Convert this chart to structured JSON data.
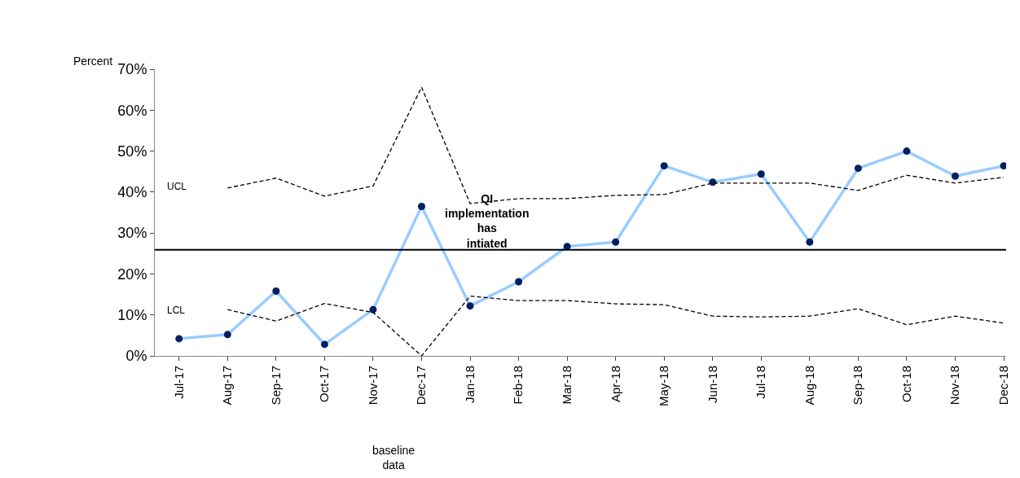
{
  "chart_data": {
    "type": "line",
    "ylabel": "Percent",
    "categories": [
      "Jul-17",
      "Aug-17",
      "Sep-17",
      "Oct-17",
      "Nov-17",
      "Dec-17",
      "Jan-18",
      "Feb-18",
      "Mar-18",
      "Apr-18",
      "May-18",
      "Jun-18",
      "Jul-18",
      "Aug-18",
      "Sep-18",
      "Oct-18",
      "Nov-18",
      "Dec-18"
    ],
    "series": [
      {
        "color": "#99ccff",
        "colors": [
          "#002060",
          "#002060",
          "#002060",
          "#002060",
          "#002060",
          "#002060",
          "#002060",
          "#002060",
          "#002060",
          "#002060",
          "#002060",
          "#002060",
          "#002060",
          "#002060",
          "#002060",
          "#002060",
          "#002060",
          "#002060"
        ],
        "marker": "circle",
        "line_style": "solid",
        "values": [
          4.2,
          5.2,
          15.8,
          2.8,
          11.3,
          36.5,
          12.2,
          18.1,
          26.7,
          27.8,
          46.4,
          42.4,
          44.4,
          27.8,
          45.8,
          50,
          43.9,
          46.4
        ]
      },
      {
        "color": "#000000",
        "marker": "none",
        "line_style": "dashed",
        "values": [
          null,
          41,
          43.4,
          39,
          41.5,
          65.6,
          37.2,
          38.4,
          38.4,
          39.2,
          39.4,
          42.2,
          42.2,
          42.2,
          40.4,
          44.1,
          42.2,
          43.6
        ]
      },
      {
        "color": "#000000",
        "marker": "none",
        "line_style": "dashed",
        "values": [
          null,
          11.3,
          8.5,
          12.8,
          10.6,
          0,
          14.6,
          13.5,
          13.5,
          12.7,
          12.5,
          9.7,
          9.5,
          9.7,
          11.5,
          7.6,
          9.7,
          8
        ]
      }
    ],
    "ref_lines": [
      {
        "axis": "y",
        "value": 25.9,
        "color": "#000000",
        "line_style": "solid"
      }
    ],
    "ylim": [
      0,
      70
    ],
    "yticks": [
      {
        "value": 0,
        "label": "0%"
      },
      {
        "value": 10,
        "label": "10%"
      },
      {
        "value": 20,
        "label": "20%"
      },
      {
        "value": 30,
        "label": "30%"
      },
      {
        "value": 40,
        "label": "40%"
      },
      {
        "value": 50,
        "label": "50%"
      },
      {
        "value": 60,
        "label": "60%"
      },
      {
        "value": 70,
        "label": "70%"
      }
    ],
    "legend": false,
    "annotations": [
      "UCL",
      "LCL",
      "QI implementation has intiated",
      "baseline data"
    ]
  }
}
